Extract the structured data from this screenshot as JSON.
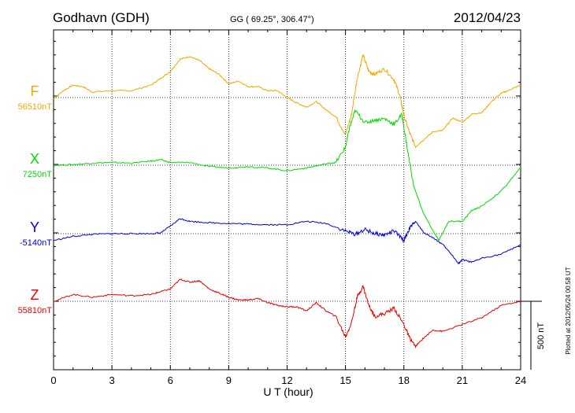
{
  "header": {
    "station": "Godhavn (GDH)",
    "coords": "GG ( 69.25°, 306.47°)",
    "date": "2012/04/23"
  },
  "footer": {
    "plotted": "Plotted at 2012/05/24 00:58 UT"
  },
  "colors": {
    "F": "#f5a800",
    "X": "#00dd00",
    "Y": "#0000dd",
    "Z": "#ee0000"
  },
  "chart_data": {
    "type": "line",
    "xlabel": "U T (hour)",
    "xlim": [
      0,
      24
    ],
    "xticks": [
      0,
      3,
      6,
      9,
      12,
      15,
      18,
      21,
      24
    ],
    "tick_labels": [
      "0",
      "3",
      "6",
      "9",
      "12",
      "15",
      "18",
      "21",
      "24"
    ],
    "scale_bar": {
      "label": "500 nT",
      "value": 500
    },
    "grid": true,
    "series": [
      {
        "name": "F",
        "baseline_label": "56510nT",
        "baseline": 56510,
        "x": [
          0,
          0.5,
          1,
          1.5,
          2,
          3,
          4,
          5,
          5.5,
          6,
          6.5,
          7,
          7.5,
          8,
          8.5,
          9,
          9.5,
          10,
          10.5,
          11,
          11.5,
          12,
          12.5,
          13,
          13.5,
          14,
          14.5,
          15,
          15.3,
          15.6,
          15.9,
          16.2,
          16.5,
          17,
          17.5,
          17.8,
          18,
          18.3,
          18.6,
          19,
          19.5,
          20,
          20.5,
          21,
          21.5,
          22,
          22.5,
          23,
          23.5,
          24
        ],
        "values": [
          56500,
          56560,
          56600,
          56590,
          56550,
          56560,
          56560,
          56600,
          56650,
          56700,
          56790,
          56810,
          56780,
          56720,
          56680,
          56610,
          56630,
          56590,
          56590,
          56560,
          56560,
          56510,
          56470,
          56440,
          56480,
          56420,
          56370,
          56240,
          56380,
          56650,
          56820,
          56700,
          56680,
          56720,
          56640,
          56520,
          56380,
          56250,
          56150,
          56200,
          56260,
          56270,
          56360,
          56330,
          56390,
          56400,
          56480,
          56540,
          56570,
          56600
        ]
      },
      {
        "name": "X",
        "baseline_label": "7250nT",
        "baseline": 7250,
        "x": [
          0,
          1,
          2,
          3,
          4,
          5,
          5.5,
          6,
          7,
          8,
          9,
          10,
          11,
          12,
          13,
          14,
          14.5,
          15,
          15.2,
          15.5,
          16,
          16.5,
          17,
          17.5,
          17.9,
          18.2,
          18.5,
          19,
          19.5,
          19.8,
          20.3,
          21,
          21.5,
          22,
          23,
          24
        ],
        "values": [
          7250,
          7255,
          7265,
          7270,
          7265,
          7280,
          7290,
          7270,
          7270,
          7240,
          7230,
          7240,
          7230,
          7210,
          7230,
          7260,
          7270,
          7380,
          7520,
          7650,
          7560,
          7580,
          7590,
          7550,
          7620,
          7350,
          7100,
          6900,
          6770,
          6700,
          6840,
          6840,
          6920,
          6950,
          7060,
          7230
        ]
      },
      {
        "name": "Y",
        "baseline_label": "-5140nT",
        "baseline": -5140,
        "x": [
          0,
          1,
          2,
          3,
          4,
          5,
          5.5,
          6,
          6.5,
          7,
          8,
          9,
          10,
          11,
          12,
          13,
          14,
          15,
          15.5,
          16,
          16.5,
          17,
          17.5,
          18,
          18.3,
          18.6,
          19,
          19.5,
          20,
          20.5,
          20.8,
          21,
          21.5,
          22,
          23,
          24
        ],
        "values": [
          -5190,
          -5160,
          -5145,
          -5140,
          -5140,
          -5140,
          -5135,
          -5085,
          -5030,
          -5050,
          -5060,
          -5065,
          -5070,
          -5075,
          -5075,
          -5050,
          -5065,
          -5120,
          -5145,
          -5110,
          -5140,
          -5150,
          -5120,
          -5190,
          -5100,
          -5050,
          -5130,
          -5170,
          -5220,
          -5300,
          -5360,
          -5330,
          -5350,
          -5320,
          -5290,
          -5220
        ]
      },
      {
        "name": "Z",
        "baseline_label": "55810nT",
        "baseline": 55810,
        "x": [
          0,
          1,
          2,
          3,
          4,
          5,
          5.5,
          6,
          6.5,
          7,
          7.5,
          8,
          8.5,
          9,
          9.5,
          10,
          10.5,
          11,
          11.5,
          12,
          12.5,
          13,
          13.5,
          14,
          14.5,
          15,
          15.3,
          15.6,
          15.9,
          16.2,
          16.5,
          17,
          17.5,
          18,
          18.3,
          18.6,
          19,
          19.5,
          20,
          21,
          22,
          23,
          24
        ],
        "values": [
          55810,
          55860,
          55840,
          55860,
          55850,
          55860,
          55880,
          55900,
          55970,
          55950,
          55960,
          55900,
          55870,
          55840,
          55820,
          55820,
          55830,
          55800,
          55780,
          55770,
          55770,
          55740,
          55800,
          55740,
          55700,
          55550,
          55650,
          55840,
          55920,
          55780,
          55700,
          55720,
          55760,
          55640,
          55540,
          55480,
          55540,
          55600,
          55590,
          55640,
          55690,
          55780,
          55810
        ]
      }
    ]
  }
}
